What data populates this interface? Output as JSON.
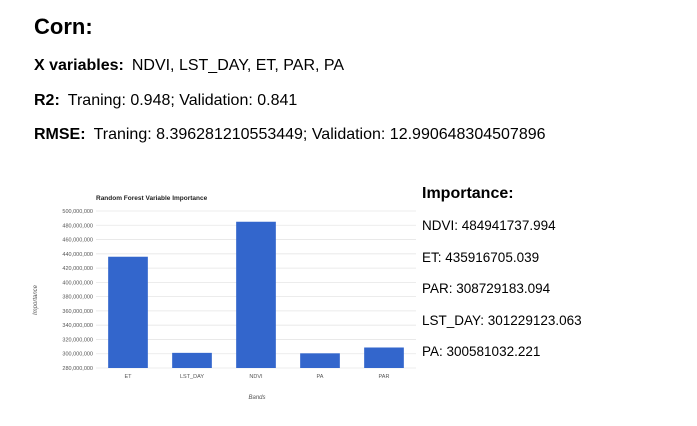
{
  "heading": "Corn:",
  "x_variables": {
    "label": "X variables:",
    "value": "NDVI, LST_DAY, ET, PAR, PA"
  },
  "r2": {
    "label": "R2:",
    "value": "Traning: 0.948; Validation: 0.841"
  },
  "rmse": {
    "label": "RMSE:",
    "value": "Traning: 8.396281210553449; Validation: 12.990648304507896"
  },
  "importance_panel": {
    "title": "Importance:",
    "items": [
      "NDVI: 484941737.994",
      "ET: 435916705.039",
      "PAR: 308729183.094",
      "LST_DAY: 301229123.063",
      "PA: 300581032.221"
    ]
  },
  "colors": {
    "bar": "#3366cc",
    "grid": "#e6e6e6",
    "tick_text": "#555555"
  },
  "chart_data": {
    "type": "bar",
    "title": "Random Forest Variable Importance",
    "xlabel": "Bands",
    "ylabel": "Importance",
    "categories": [
      "ET",
      "LST_DAY",
      "NDVI",
      "PA",
      "PAR"
    ],
    "values": [
      435916705.039,
      301229123.063,
      484941737.994,
      300581032.221,
      308729183.094
    ],
    "ylim": [
      280000000,
      500000000
    ],
    "yticks": [
      280000000,
      300000000,
      320000000,
      340000000,
      360000000,
      380000000,
      400000000,
      420000000,
      440000000,
      460000000,
      480000000,
      500000000
    ],
    "ytick_labels": [
      "280,000,000",
      "300,000,000",
      "320,000,000",
      "340,000,000",
      "360,000,000",
      "380,000,000",
      "400,000,000",
      "420,000,000",
      "440,000,000",
      "460,000,000",
      "480,000,000",
      "500,000,000"
    ],
    "grid": true,
    "legend": "none"
  }
}
